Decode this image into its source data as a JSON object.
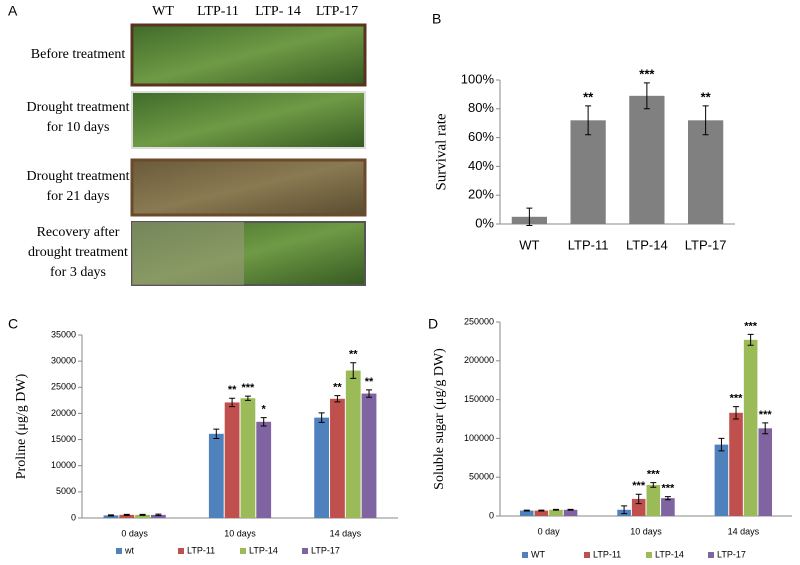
{
  "panel_a": {
    "label": "A",
    "columns": [
      "WT",
      "LTP-11",
      "LTP- 14",
      "LTP-17"
    ],
    "rows": [
      [
        "Before treatment"
      ],
      [
        "Drought treatment",
        "for 10 days"
      ],
      [
        "Drought treatment",
        "for 21 days"
      ],
      [
        "Recovery after",
        "drought treatment",
        "for 3 days"
      ]
    ]
  },
  "chart_data": [
    {
      "type": "bar",
      "label": "B",
      "ylabel": "Survival rate",
      "categories": [
        "WT",
        "LTP-11",
        "LTP-14",
        "LTP-17"
      ],
      "values": [
        5,
        72,
        89,
        72
      ],
      "errors": [
        6,
        10,
        9,
        10
      ],
      "significance": [
        null,
        "**",
        "***",
        "**"
      ],
      "color": "#808080",
      "ylim": [
        0,
        100
      ],
      "yticks": [
        {
          "value": 0,
          "label": "0%"
        },
        {
          "value": 20,
          "label": "20%"
        },
        {
          "value": 40,
          "label": "40%"
        },
        {
          "value": 60,
          "label": "60%"
        },
        {
          "value": 80,
          "label": "80%"
        },
        {
          "value": 100,
          "label": "100%"
        }
      ],
      "grid": false
    },
    {
      "type": "bar",
      "label": "C",
      "ylabel": "Proline  (μg/g DW)",
      "categories": [
        "0 days",
        "10 days",
        "14 days"
      ],
      "series": [
        {
          "name": "wt",
          "color": "#4f81bd",
          "values": [
            500,
            16100,
            19200
          ],
          "errors": [
            100,
            900,
            900
          ],
          "significance": [
            null,
            null,
            null
          ]
        },
        {
          "name": "LTP-11",
          "color": "#c0504d",
          "values": [
            600,
            22100,
            22800
          ],
          "errors": [
            100,
            800,
            600
          ],
          "significance": [
            null,
            "**",
            "**"
          ]
        },
        {
          "name": "LTP-14",
          "color": "#9bbb59",
          "values": [
            600,
            22900,
            28200
          ],
          "errors": [
            100,
            400,
            1500
          ],
          "significance": [
            null,
            "***",
            "**"
          ]
        },
        {
          "name": "LTP-17",
          "color": "#8064a2",
          "values": [
            600,
            18400,
            23800
          ],
          "errors": [
            150,
            800,
            700
          ],
          "significance": [
            null,
            "*",
            "**"
          ]
        }
      ],
      "ylim": [
        0,
        35000
      ],
      "yticks": [
        0,
        5000,
        10000,
        15000,
        20000,
        25000,
        30000,
        35000
      ],
      "grid": false,
      "legend": "bottom"
    },
    {
      "type": "bar",
      "label": "D",
      "ylabel": "Soluble sugar  (μg/g DW)",
      "categories": [
        "0 day",
        "10 days",
        "14 days"
      ],
      "series": [
        {
          "name": "WT",
          "color": "#4f81bd",
          "values": [
            7000,
            8000,
            92000
          ],
          "errors": [
            500,
            5000,
            8000
          ],
          "significance": [
            null,
            null,
            null
          ]
        },
        {
          "name": "LTP-11",
          "color": "#c0504d",
          "values": [
            7000,
            22000,
            133000
          ],
          "errors": [
            500,
            6000,
            8000
          ],
          "significance": [
            null,
            "***",
            "***"
          ]
        },
        {
          "name": "LTP-14",
          "color": "#9bbb59",
          "values": [
            8000,
            40000,
            227000
          ],
          "errors": [
            500,
            3000,
            7000
          ],
          "significance": [
            null,
            "***",
            "***"
          ]
        },
        {
          "name": "LTP-17",
          "color": "#8064a2",
          "values": [
            8000,
            23000,
            113000
          ],
          "errors": [
            500,
            2000,
            7000
          ],
          "significance": [
            null,
            "***",
            "***"
          ]
        }
      ],
      "ylim": [
        0,
        250000
      ],
      "yticks": [
        0,
        50000,
        100000,
        150000,
        200000,
        250000
      ],
      "grid": false,
      "legend": "bottom"
    }
  ]
}
